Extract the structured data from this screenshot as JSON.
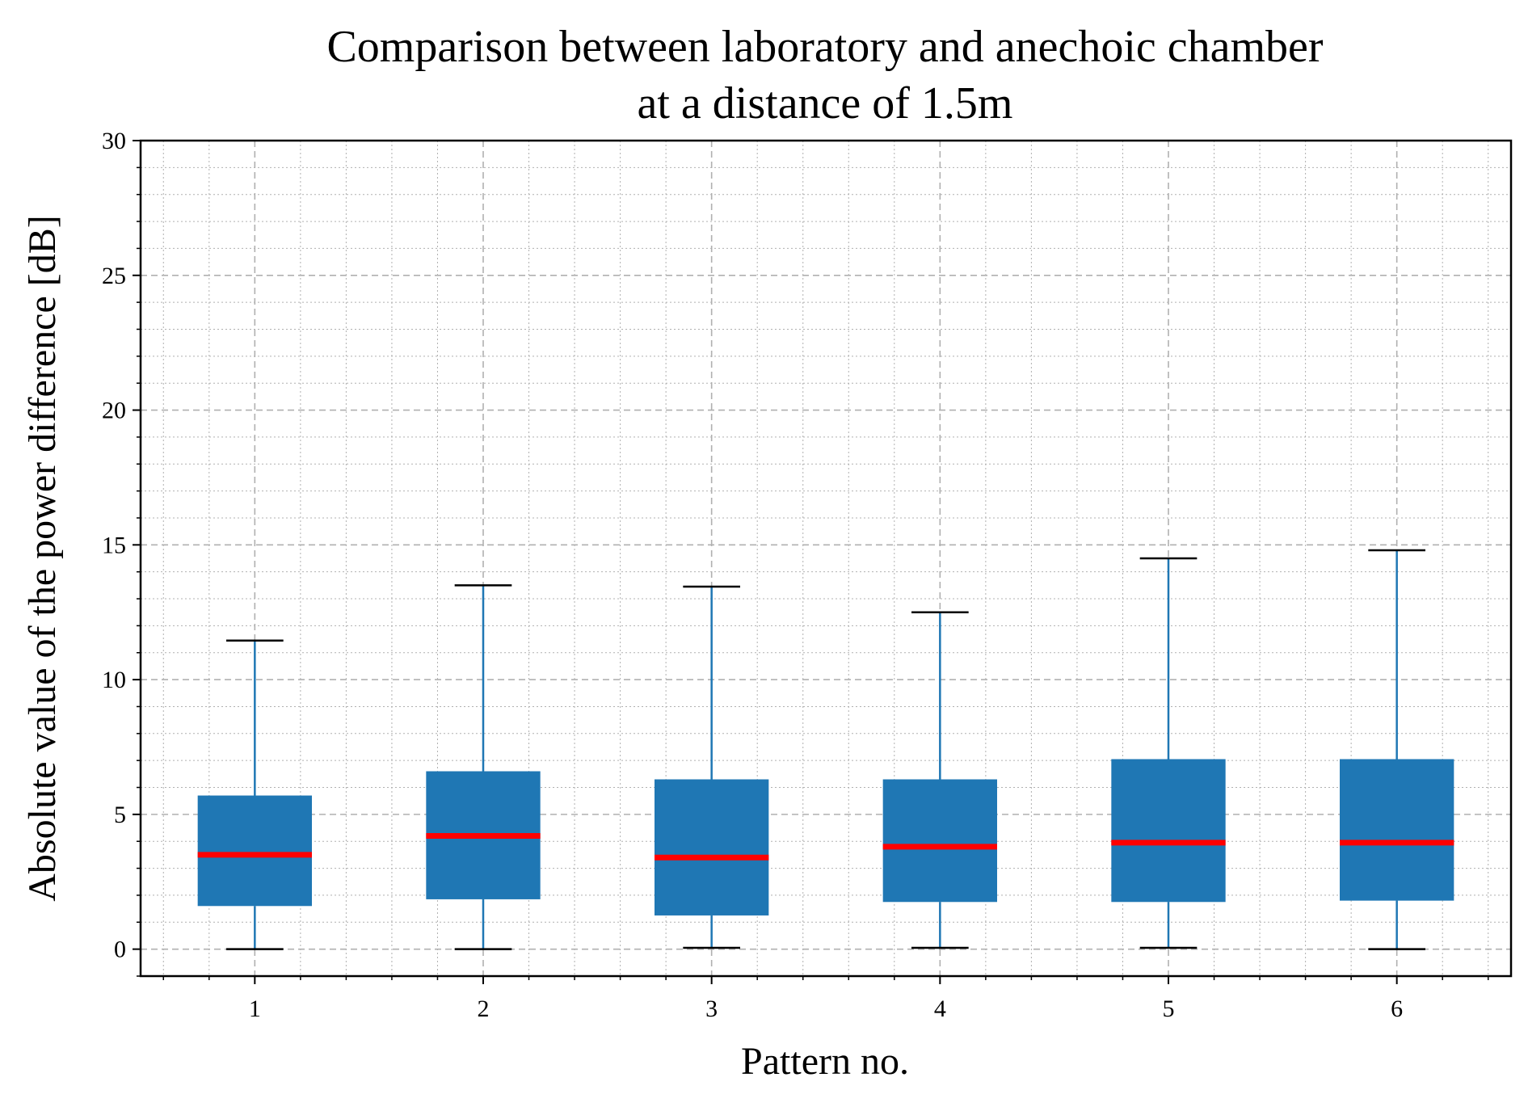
{
  "chart_data": {
    "type": "box",
    "title": [
      "Comparison between laboratory and anechoic chamber",
      "at a distance of 1.5m"
    ],
    "xlabel": "Pattern no.",
    "ylabel": "Absolute value of the power difference [dB]",
    "categories": [
      "1",
      "2",
      "3",
      "4",
      "5",
      "6"
    ],
    "xlim": [
      0.5,
      6.5
    ],
    "ylim": [
      -1,
      30
    ],
    "yticks": [
      0,
      5,
      10,
      15,
      20,
      25,
      30
    ],
    "grid": true,
    "boxes": [
      {
        "category": "1",
        "whisker_low": 0.0,
        "q1": 1.6,
        "median": 3.5,
        "q3": 5.7,
        "whisker_high": 11.45
      },
      {
        "category": "2",
        "whisker_low": 0.0,
        "q1": 1.85,
        "median": 4.2,
        "q3": 6.6,
        "whisker_high": 13.5
      },
      {
        "category": "3",
        "whisker_low": 0.05,
        "q1": 1.25,
        "median": 3.4,
        "q3": 6.3,
        "whisker_high": 13.45
      },
      {
        "category": "4",
        "whisker_low": 0.05,
        "q1": 1.75,
        "median": 3.8,
        "q3": 6.3,
        "whisker_high": 12.5
      },
      {
        "category": "5",
        "whisker_low": 0.05,
        "q1": 1.75,
        "median": 3.95,
        "q3": 7.05,
        "whisker_high": 14.5
      },
      {
        "category": "6",
        "whisker_low": 0.0,
        "q1": 1.8,
        "median": 3.95,
        "q3": 7.05,
        "whisker_high": 14.8
      }
    ],
    "colors": {
      "box": "#1f77b4",
      "median": "#ff0000",
      "whisker": "#1f77b4",
      "cap": "#000000",
      "grid": "#b0b0b0"
    }
  }
}
